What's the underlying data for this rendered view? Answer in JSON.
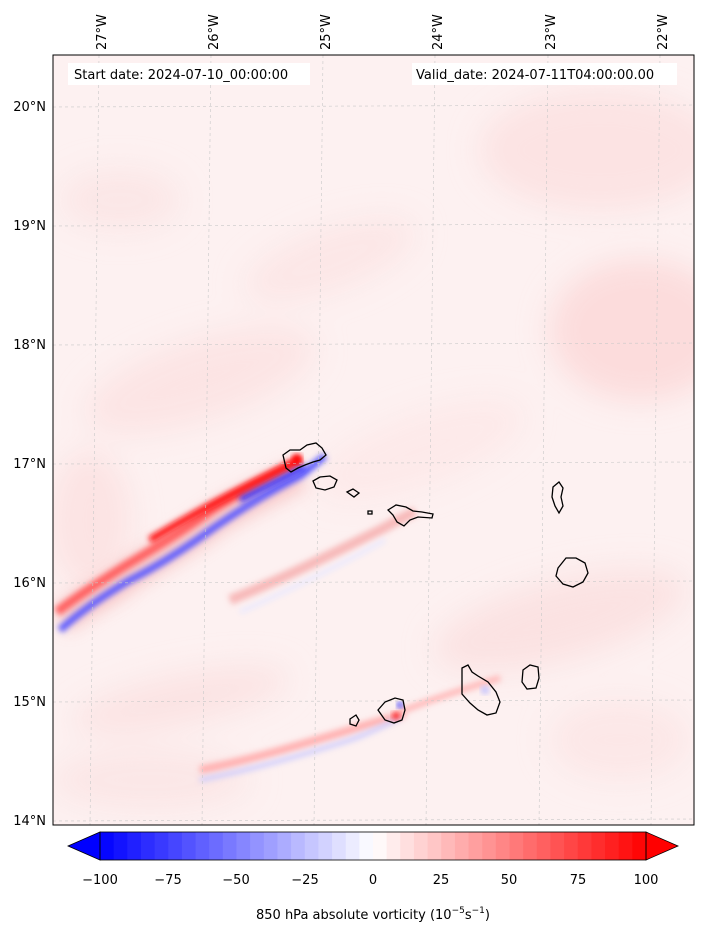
{
  "header": {
    "start_date": "Start date: 2024-07-10_00:00:00",
    "valid_date": "Valid_date: 2024-07-11T04:00:00.00"
  },
  "axes": {
    "lon_labels": [
      "27°W",
      "26°W",
      "25°W",
      "24°W",
      "23°W",
      "22°W"
    ],
    "lat_labels": [
      "20°N",
      "19°N",
      "18°N",
      "17°N",
      "16°N",
      "15°N",
      "14°N"
    ]
  },
  "colorbar": {
    "ticks": [
      "−100",
      "−75",
      "−50",
      "−25",
      "0",
      "25",
      "50",
      "75",
      "100"
    ],
    "label_main": "850 hPa absolute vorticity (10",
    "label_exp1": "−5",
    "label_mid": "s",
    "label_exp2": "−1",
    "label_end": ")",
    "min_color": "#0000ff",
    "mid_color": "#ffffff",
    "max_color": "#ff0000"
  },
  "chart_data": {
    "type": "heatmap",
    "field": "850 hPa absolute vorticity",
    "units": "1e-5 s^-1",
    "vmin": -100,
    "vmax": 100,
    "lon_range": [
      -27.3,
      -21.7
    ],
    "lat_range": [
      13.95,
      20.45
    ]
  }
}
